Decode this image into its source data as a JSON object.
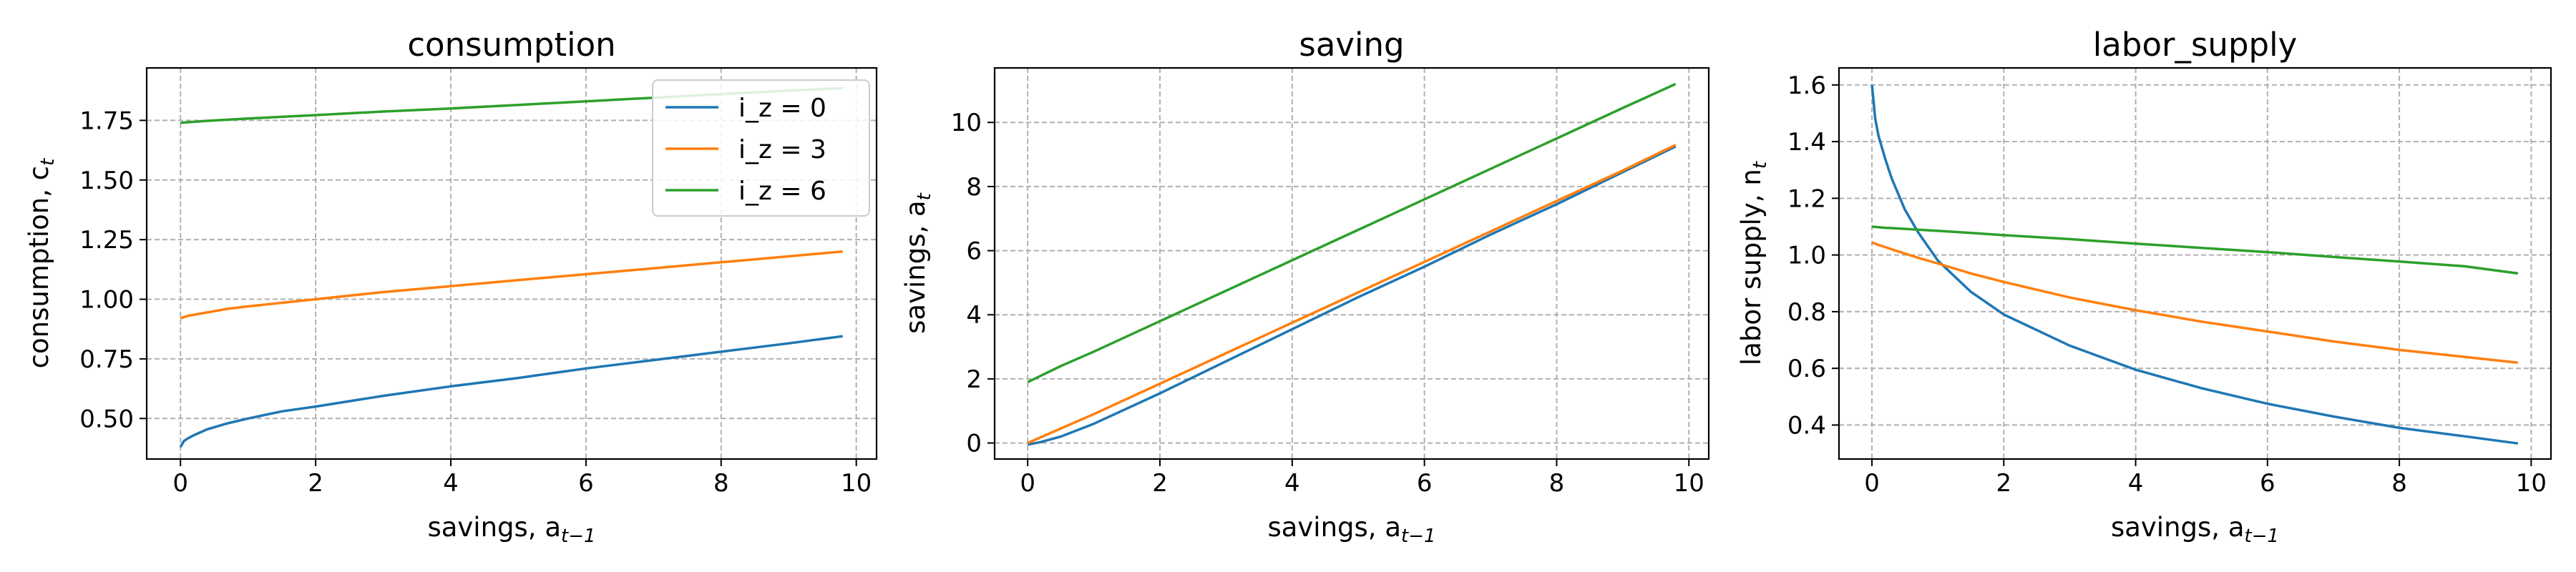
{
  "colors": {
    "c0": "#1f77b4",
    "c1": "#ff7f0e",
    "c2": "#2ca02c",
    "grid": "#b0b0b0"
  },
  "legend": [
    "i_z = 0",
    "i_z = 3",
    "i_z = 6"
  ],
  "chart_data": [
    {
      "type": "line",
      "title": "consumption",
      "xlabel": "savings, a",
      "xlabel_sub": "t−1",
      "ylabel": "consumption, c",
      "ylabel_sub": "t",
      "xlim": [
        -0.5,
        10.3
      ],
      "ylim": [
        0.33,
        1.97
      ],
      "xticks": [
        0,
        2,
        4,
        6,
        8,
        10
      ],
      "yticks": [
        0.5,
        0.75,
        1.0,
        1.25,
        1.5,
        1.75
      ],
      "ytick_labels": [
        "0.50",
        "0.75",
        "1.00",
        "1.25",
        "1.50",
        "1.75"
      ],
      "grid": true,
      "legend_position": "top-right",
      "x": [
        0,
        0.05,
        0.1,
        0.2,
        0.4,
        0.7,
        1,
        1.5,
        2,
        3,
        4,
        5,
        6,
        7,
        8,
        9,
        9.8
      ],
      "series": [
        {
          "name": "i_z = 0",
          "values": [
            0.38,
            0.405,
            0.415,
            0.43,
            0.455,
            0.48,
            0.5,
            0.53,
            0.55,
            0.595,
            0.635,
            0.67,
            0.71,
            0.745,
            0.78,
            0.815,
            0.845
          ]
        },
        {
          "name": "i_z = 3",
          "values": [
            0.92,
            0.925,
            0.93,
            0.935,
            0.945,
            0.96,
            0.97,
            0.985,
            1.0,
            1.03,
            1.055,
            1.08,
            1.105,
            1.13,
            1.155,
            1.18,
            1.2
          ]
        },
        {
          "name": "i_z = 6",
          "values": [
            1.74,
            1.741,
            1.742,
            1.744,
            1.748,
            1.753,
            1.758,
            1.765,
            1.772,
            1.787,
            1.8,
            1.815,
            1.83,
            1.845,
            1.86,
            1.875,
            1.885
          ]
        }
      ]
    },
    {
      "type": "line",
      "title": "saving",
      "xlabel": "savings, a",
      "xlabel_sub": "t−1",
      "ylabel": "savings, a",
      "ylabel_sub": "t",
      "xlim": [
        -0.5,
        10.3
      ],
      "ylim": [
        -0.5,
        11.7
      ],
      "xticks": [
        0,
        2,
        4,
        6,
        8,
        10
      ],
      "yticks": [
        0,
        2,
        4,
        6,
        8,
        10
      ],
      "ytick_labels": [
        "0",
        "2",
        "4",
        "6",
        "8",
        "10"
      ],
      "grid": true,
      "x": [
        0,
        0.2,
        0.5,
        1,
        2,
        3,
        4,
        5,
        6,
        7,
        8,
        9,
        9.8
      ],
      "series": [
        {
          "name": "i_z = 0",
          "values": [
            -0.05,
            0.03,
            0.2,
            0.6,
            1.55,
            2.55,
            3.55,
            4.55,
            5.5,
            6.5,
            7.45,
            8.45,
            9.25
          ]
        },
        {
          "name": "i_z = 3",
          "values": [
            0.0,
            0.18,
            0.45,
            0.9,
            1.85,
            2.8,
            3.75,
            4.7,
            5.65,
            6.6,
            7.55,
            8.5,
            9.3
          ]
        },
        {
          "name": "i_z = 6",
          "values": [
            1.9,
            2.1,
            2.4,
            2.85,
            3.8,
            4.75,
            5.7,
            6.65,
            7.6,
            8.55,
            9.5,
            10.45,
            11.2
          ]
        }
      ]
    },
    {
      "type": "line",
      "title": "labor_supply",
      "xlabel": "savings, a",
      "xlabel_sub": "t−1",
      "ylabel": "labor supply, n",
      "ylabel_sub": "t",
      "xlim": [
        -0.5,
        10.3
      ],
      "ylim": [
        0.28,
        1.66
      ],
      "xticks": [
        0,
        2,
        4,
        6,
        8,
        10
      ],
      "yticks": [
        0.4,
        0.6,
        0.8,
        1.0,
        1.2,
        1.4,
        1.6
      ],
      "ytick_labels": [
        "0.4",
        "0.6",
        "0.8",
        "1.0",
        "1.2",
        "1.4",
        "1.6"
      ],
      "grid": true,
      "x": [
        0,
        0.05,
        0.1,
        0.2,
        0.3,
        0.5,
        0.7,
        1,
        1.5,
        2,
        3,
        4,
        5,
        6,
        7,
        8,
        9,
        9.8
      ],
      "series": [
        {
          "name": "i_z = 0",
          "values": [
            1.6,
            1.48,
            1.42,
            1.34,
            1.27,
            1.16,
            1.08,
            0.98,
            0.87,
            0.79,
            0.68,
            0.595,
            0.53,
            0.475,
            0.43,
            0.39,
            0.36,
            0.335
          ]
        },
        {
          "name": "i_z = 3",
          "values": [
            1.045,
            1.04,
            1.035,
            1.028,
            1.02,
            1.005,
            0.99,
            0.97,
            0.935,
            0.905,
            0.85,
            0.805,
            0.765,
            0.73,
            0.695,
            0.665,
            0.64,
            0.62
          ]
        },
        {
          "name": "i_z = 6",
          "values": [
            1.1,
            1.099,
            1.098,
            1.096,
            1.095,
            1.092,
            1.089,
            1.085,
            1.078,
            1.07,
            1.056,
            1.04,
            1.025,
            1.01,
            0.993,
            0.977,
            0.96,
            0.935
          ]
        }
      ]
    }
  ]
}
